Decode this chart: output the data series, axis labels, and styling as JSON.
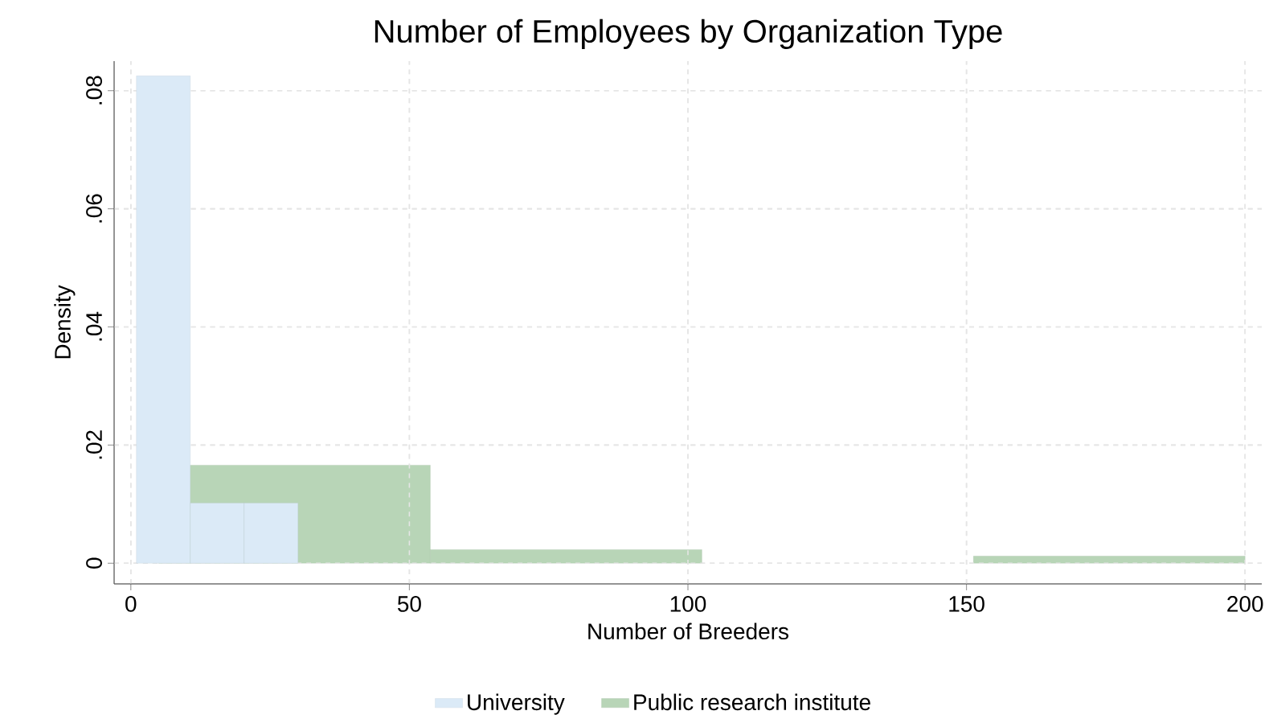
{
  "chart_data": [
    {
      "type": "histogram",
      "title": "Number of Employees by Organization Type",
      "xlabel": "Number of Breeders",
      "ylabel": "Density",
      "bins": [
        1,
        10.67,
        20.33,
        30
      ],
      "series": [
        {
          "name": "University",
          "color": "#dbeaf7",
          "values": [
            0.0825,
            0.0102,
            0.0102
          ]
        }
      ],
      "xlim": [
        -3,
        203
      ],
      "ylim": [
        -0.0035,
        0.085
      ],
      "xticks": [
        0,
        50,
        100,
        150,
        200
      ],
      "yticks": [
        0,
        {
          "value": 0.02,
          "label": ".02"
        },
        {
          "value": 0.04,
          "label": ".04"
        },
        {
          "value": 0.06,
          "label": ".06"
        },
        {
          "value": 0.08,
          "label": ".08"
        }
      ],
      "grid": true,
      "legend": "bottom"
    },
    {
      "type": "histogram",
      "bins": [
        5,
        53.75,
        102.5,
        151.25,
        200
      ],
      "series": [
        {
          "name": "Public research institute",
          "color": "#b8d5b7",
          "values": [
            0.0166,
            0.0023,
            0,
            0.0012
          ]
        }
      ],
      "xlim": [
        -3,
        203
      ],
      "ylim": [
        -0.0035,
        0.085
      ],
      "xticks": [
        0,
        50,
        100,
        150,
        200
      ],
      "yticks": [
        0,
        0.02,
        0.04,
        0.06,
        0.08
      ],
      "grid": true,
      "legend": "bottom",
      "tick_labels": false
    }
  ]
}
